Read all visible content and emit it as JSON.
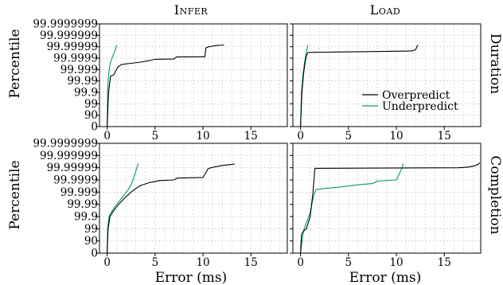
{
  "chart_data": {
    "type": "line",
    "layout": "2x2 grid of percentile plots; legend in lower-right of top-right panel; grid on (dotted)",
    "column_titles": [
      "Infer",
      "Load"
    ],
    "row_labels": [
      "Duration",
      "Completion"
    ],
    "ylabel": "Percentile",
    "xlabel": "Error (ms)",
    "x_ticks": [
      0,
      5,
      10,
      15
    ],
    "xlim": [
      -0.8,
      18.8
    ],
    "y_ticks": [
      "0",
      "90",
      "99",
      "99.9",
      "99.99",
      "99.999",
      "99.9999",
      "99.99999",
      "99.999999",
      "99.9999999"
    ],
    "y_scale": "nines (percentile); tick index k corresponds to percentile 100-10^(2-k)",
    "legend": [
      "Overpredict",
      "Underpredict"
    ],
    "colors": {
      "Overpredict": "#000000",
      "Underpredict": "#009b77",
      "grid": "#b4b4b4"
    },
    "panels": [
      {
        "row": "Duration",
        "column": "Infer",
        "series": [
          {
            "name": "Overpredict",
            "points": [
              [
                0,
                0
              ],
              [
                0.15,
                3
              ],
              [
                0.35,
                4.4
              ],
              [
                0.7,
                4.55
              ],
              [
                0.9,
                4.9
              ],
              [
                1.1,
                5.2
              ],
              [
                1.5,
                5.45
              ],
              [
                2.5,
                5.55
              ],
              [
                3.5,
                5.65
              ],
              [
                4.5,
                5.8
              ],
              [
                5.0,
                5.9
              ],
              [
                7.0,
                5.92
              ],
              [
                7.2,
                6.1
              ],
              [
                10.2,
                6.12
              ],
              [
                10.3,
                6.9
              ],
              [
                10.6,
                7.0
              ],
              [
                11.0,
                7.05
              ],
              [
                11.4,
                7.1
              ],
              [
                12.2,
                7.15
              ]
            ]
          },
          {
            "name": "Underpredict",
            "points": [
              [
                0,
                0
              ],
              [
                0.05,
                3
              ],
              [
                0.15,
                4.5
              ],
              [
                0.25,
                5.2
              ],
              [
                0.35,
                5.6
              ],
              [
                0.5,
                6.0
              ],
              [
                0.65,
                6.3
              ],
              [
                0.8,
                6.6
              ],
              [
                0.9,
                6.9
              ],
              [
                1.0,
                7.15
              ]
            ]
          }
        ]
      },
      {
        "row": "Duration",
        "column": "Load",
        "series": [
          {
            "name": "Overpredict",
            "points": [
              [
                0,
                0
              ],
              [
                0.15,
                3
              ],
              [
                0.3,
                4.5
              ],
              [
                0.45,
                5.5
              ],
              [
                0.6,
                6.2
              ],
              [
                0.75,
                6.45
              ],
              [
                0.85,
                6.5
              ],
              [
                11.5,
                6.62
              ],
              [
                12.0,
                6.72
              ],
              [
                12.15,
                7.0
              ],
              [
                12.25,
                7.15
              ]
            ]
          },
          {
            "name": "Underpredict",
            "points": [
              [
                0,
                0
              ],
              [
                0.1,
                3
              ],
              [
                0.25,
                4.5
              ],
              [
                0.4,
                5.5
              ],
              [
                0.55,
                6.3
              ],
              [
                0.65,
                6.7
              ],
              [
                0.75,
                7.15
              ]
            ]
          }
        ]
      },
      {
        "row": "Completion",
        "column": "Infer",
        "series": [
          {
            "name": "Overpredict",
            "points": [
              [
                0,
                0
              ],
              [
                0.1,
                2
              ],
              [
                0.3,
                3
              ],
              [
                0.7,
                3.5
              ],
              [
                1.2,
                4.0
              ],
              [
                1.8,
                4.5
              ],
              [
                2.5,
                5.0
              ],
              [
                3.0,
                5.3
              ],
              [
                3.5,
                5.55
              ],
              [
                4.5,
                5.8
              ],
              [
                5.5,
                5.95
              ],
              [
                7.0,
                6.0
              ],
              [
                7.3,
                6.15
              ],
              [
                10.0,
                6.2
              ],
              [
                10.3,
                6.6
              ],
              [
                10.5,
                6.9
              ],
              [
                10.8,
                7.0
              ],
              [
                11.5,
                7.1
              ],
              [
                12.2,
                7.2
              ],
              [
                13.3,
                7.3
              ]
            ]
          },
          {
            "name": "Underpredict",
            "points": [
              [
                0,
                0
              ],
              [
                0.05,
                2
              ],
              [
                0.2,
                3
              ],
              [
                0.45,
                3.4
              ],
              [
                0.8,
                3.8
              ],
              [
                1.2,
                4.2
              ],
              [
                1.7,
                4.7
              ],
              [
                2.2,
                5.2
              ],
              [
                2.5,
                5.6
              ],
              [
                2.7,
                6.0
              ],
              [
                2.9,
                6.5
              ],
              [
                3.1,
                7.0
              ],
              [
                3.25,
                7.35
              ]
            ]
          }
        ]
      },
      {
        "row": "Completion",
        "column": "Load",
        "series": [
          {
            "name": "Overpredict",
            "points": [
              [
                0,
                0
              ],
              [
                0.1,
                1.5
              ],
              [
                0.3,
                1.8
              ],
              [
                0.6,
                2.0
              ],
              [
                0.8,
                2.5
              ],
              [
                1.0,
                3.0
              ],
              [
                1.3,
                5.0
              ],
              [
                1.5,
                6.95
              ],
              [
                16.5,
                7.0
              ],
              [
                17.5,
                7.05
              ],
              [
                18.1,
                7.15
              ],
              [
                18.5,
                7.25
              ],
              [
                18.7,
                7.4
              ]
            ]
          },
          {
            "name": "Underpredict",
            "points": [
              [
                0,
                0
              ],
              [
                0.3,
                1.8
              ],
              [
                0.6,
                2.5
              ],
              [
                1.0,
                3.3
              ],
              [
                1.3,
                4.5
              ],
              [
                1.6,
                5.2
              ],
              [
                2.5,
                5.3
              ],
              [
                4.0,
                5.4
              ],
              [
                6.0,
                5.6
              ],
              [
                7.5,
                5.7
              ],
              [
                8.0,
                5.9
              ],
              [
                10.0,
                6.0
              ],
              [
                10.3,
                6.5
              ],
              [
                10.6,
                7.0
              ],
              [
                10.7,
                7.35
              ]
            ]
          }
        ]
      }
    ]
  }
}
